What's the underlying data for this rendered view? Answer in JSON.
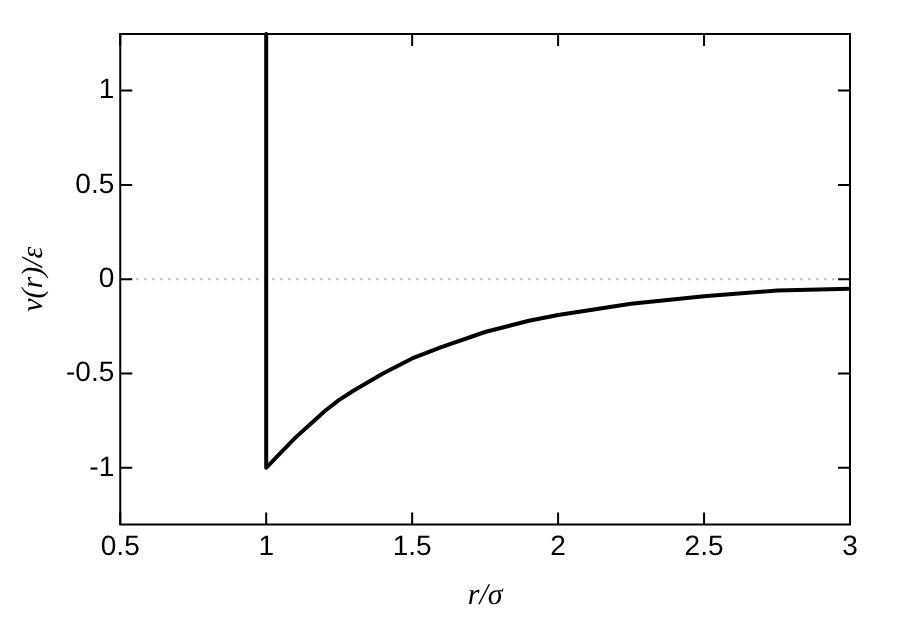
{
  "chart_data": {
    "type": "line",
    "xlabel": "r/σ",
    "ylabel": "v(r)/ε",
    "series": [
      {
        "color": "#000000",
        "x": [
          1,
          1,
          1.05,
          1.1,
          1.15,
          1.2,
          1.25,
          1.3,
          1.4,
          1.5,
          1.6,
          1.75,
          1.9,
          2,
          2.25,
          2.5,
          2.75,
          3
        ],
        "values": [
          1.3,
          -1,
          -0.92,
          -0.84,
          -0.77,
          -0.7,
          -0.64,
          -0.59,
          -0.5,
          -0.42,
          -0.36,
          -0.28,
          -0.22,
          -0.19,
          -0.13,
          -0.09,
          -0.06,
          -0.05
        ]
      }
    ],
    "xlim": [
      0.5,
      3
    ],
    "xticks": [
      0.5,
      1,
      1.5,
      2,
      2.5,
      3
    ],
    "ylim": [
      -1.3,
      1.3
    ],
    "yticks": [
      -1,
      -0.5,
      0,
      0.5,
      1
    ],
    "ref_lines": [
      {
        "axis": "y",
        "value": 0,
        "color": "#b0b0b0",
        "line_style": "dotted"
      }
    ],
    "grid": false,
    "legend": false,
    "marker": "none",
    "line_style": "solid"
  }
}
